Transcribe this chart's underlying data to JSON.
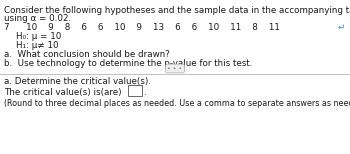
{
  "title_line1": "Consider the following hypotheses and the sample data in the accompanying table. Answer the following questions",
  "title_line2": "using α = 0.02.",
  "data_row": "7      10    9    8    6    6    10    9    13    6    6    10    11    8    11",
  "h0": "H₀: μ = 10",
  "h1": "H₁: μ≠ 10",
  "item_a": "a.  What conclusion should be drawn?",
  "item_b": "b.  Use technology to determine the p-value for this test.",
  "section_a": "a. Determine the critical value(s).",
  "critical_line": "The critical value(s) is(are)",
  "round_note": "(Round to three decimal places as needed. Use a comma to separate answers as needed.)",
  "bg_color": "#ffffff",
  "text_color": "#1a1a1a",
  "divider_color": "#c0c0c0",
  "arrow_color": "#5588bb",
  "font_size_main": 6.3,
  "font_size_small": 5.8
}
